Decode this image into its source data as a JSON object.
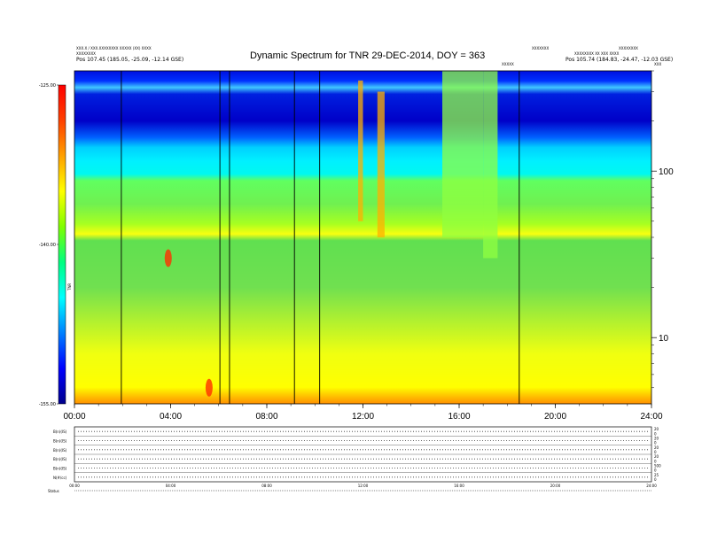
{
  "header": {
    "left_line1": "XXX.X / XXX.XXXXXXXX XXXXX (XX) XXXX",
    "left_line2": "XXXXXXXX",
    "left_line3": "Pos     107.45 (185.05, -25.09, -12.14 GSE)",
    "right_line1": "XXXXXXXX",
    "right_line2": "XXXXXXXX XX XXX XXXX",
    "right_line3": "Pos     105.74 (184.83, -24.47, -12.03 GSE)",
    "right_top": "XXXXXXX",
    "center_mark": "XXXXX",
    "corner_mark": "XXX"
  },
  "colorbar": {
    "colors": [
      "#00008b",
      "#0000ff",
      "#0080ff",
      "#00ffff",
      "#00ff80",
      "#80ff00",
      "#ffff00",
      "#ffa000",
      "#ff4000",
      "#ff0000"
    ],
    "axis_label": "TNR"
  },
  "chart_data": {
    "type": "heatmap",
    "title": "Dynamic Spectrum for TNR 29-DEC-2014, DOY = 363",
    "x": {
      "ticks": [
        "00:00",
        "04:00",
        "08:00",
        "12:00",
        "16:00",
        "20:00",
        "24:00"
      ],
      "range_hours": [
        0,
        24
      ]
    },
    "y_right": {
      "ticks": [
        "100",
        "10"
      ],
      "scale": "log",
      "range": [
        4,
        400
      ]
    },
    "colorbar_ticks": [
      "-125.00",
      "-140.00",
      "-155.00"
    ],
    "colorbar_range": [
      -155,
      -125
    ],
    "data_gaps_hours": [
      1.95,
      6.05,
      6.45,
      9.15,
      10.2,
      18.5
    ],
    "background_band_boundaries_khz": [
      65,
      33
    ],
    "bursts": [
      {
        "t_start": 11.8,
        "t_end": 12.0,
        "f_low": 50,
        "f_high": 350
      },
      {
        "t_start": 12.6,
        "t_end": 12.9,
        "f_low": 40,
        "f_high": 300
      },
      {
        "t_start": 15.3,
        "t_end": 17.0,
        "f_low": 40,
        "f_high": 400
      },
      {
        "t_start": 17.0,
        "t_end": 17.6,
        "f_low": 30,
        "f_high": 400
      }
    ],
    "hotspots": [
      {
        "t": 3.9,
        "f": 30
      },
      {
        "t": 5.6,
        "f": 5
      }
    ],
    "bottom_panels": {
      "rows": [
        "B(n)(IS)",
        "B(n)(IS)",
        "B(n)(IS)",
        "B(n)(IS)",
        "B(n)(IS)",
        "N(#/cc)"
      ],
      "right_ticks": [
        "20",
        "0",
        "20",
        "0",
        "20",
        "0",
        "20",
        "0",
        "500",
        "0",
        "25",
        "0"
      ],
      "x_ticks": [
        "00:00",
        "04:00",
        "08:00",
        "12:00",
        "16:00",
        "20:00",
        "24:00"
      ],
      "status_label": "Status"
    }
  }
}
